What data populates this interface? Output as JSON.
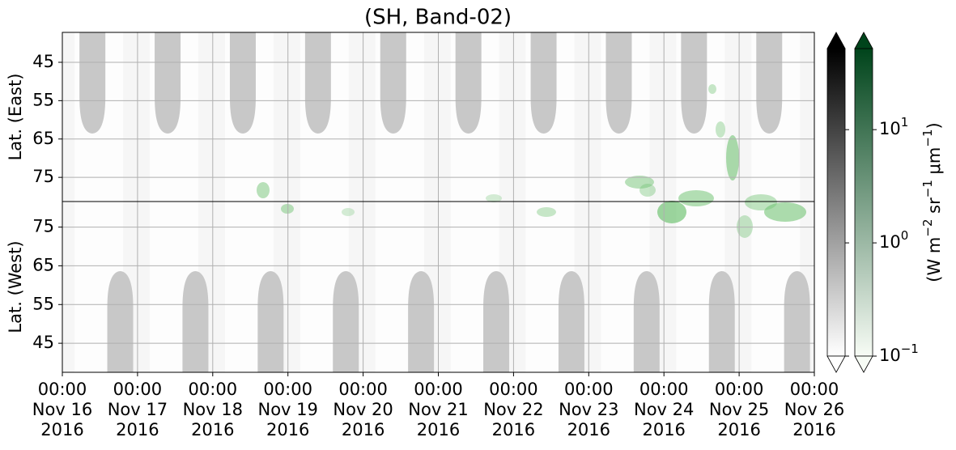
{
  "chart_data": {
    "type": "heatmap",
    "title": "(SH, Band-02)",
    "xlim": [
      "2016-11-16T00:00",
      "2016-11-26T00:00"
    ],
    "xticks": [
      {
        "value": "2016-11-16T00:00",
        "label": [
          "00:00",
          "Nov 16",
          "2016"
        ]
      },
      {
        "value": "2016-11-17T00:00",
        "label": [
          "00:00",
          "Nov 17",
          "2016"
        ]
      },
      {
        "value": "2016-11-18T00:00",
        "label": [
          "00:00",
          "Nov 18",
          "2016"
        ]
      },
      {
        "value": "2016-11-19T00:00",
        "label": [
          "00:00",
          "Nov 19",
          "2016"
        ]
      },
      {
        "value": "2016-11-20T00:00",
        "label": [
          "00:00",
          "Nov 20",
          "2016"
        ]
      },
      {
        "value": "2016-11-21T00:00",
        "label": [
          "00:00",
          "Nov 21",
          "2016"
        ]
      },
      {
        "value": "2016-11-22T00:00",
        "label": [
          "00:00",
          "Nov 22",
          "2016"
        ]
      },
      {
        "value": "2016-11-23T00:00",
        "label": [
          "00:00",
          "Nov 23",
          "2016"
        ]
      },
      {
        "value": "2016-11-24T00:00",
        "label": [
          "00:00",
          "Nov 24",
          "2016"
        ]
      },
      {
        "value": "2016-11-25T00:00",
        "label": [
          "00:00",
          "Nov 25",
          "2016"
        ]
      },
      {
        "value": "2016-11-26T00:00",
        "label": [
          "00:00",
          "Nov 26",
          "2016"
        ]
      }
    ],
    "panels": [
      {
        "ylabel": "Lat. (East)",
        "ylim": [
          37.2,
          81.3
        ],
        "yticks": [
          45,
          55,
          65,
          75
        ]
      },
      {
        "ylabel": "Lat. (West)",
        "ylim": [
          81.6,
          37.5
        ],
        "yticks": [
          75,
          65,
          55,
          45
        ]
      }
    ],
    "grid": true,
    "log": true,
    "clim": [
      0.1,
      52
    ],
    "colorbars": [
      {
        "cmap": "Greys",
        "colors": [
          "#ffffff",
          "#000000"
        ]
      },
      {
        "cmap": "Greens",
        "colors": [
          "#f7fcf5",
          "#00441b"
        ]
      }
    ],
    "cticks": [
      {
        "value": 0.1,
        "label": "10",
        "exponent": "−1"
      },
      {
        "value": 1,
        "label": "10",
        "exponent": "0"
      },
      {
        "value": 10,
        "label": "10",
        "exponent": "1"
      }
    ],
    "colorbar_label": [
      "(W m",
      "−2",
      " sr",
      "−1",
      " μm",
      "−1",
      ")"
    ]
  }
}
